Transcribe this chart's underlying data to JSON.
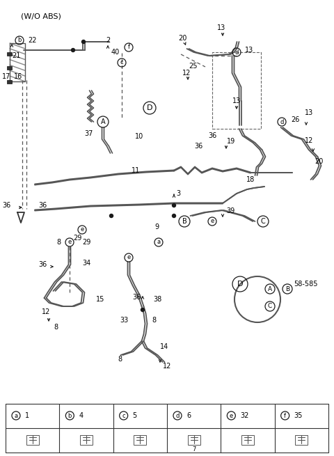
{
  "title": "(W/O ABS)",
  "bg_color": "#ffffff",
  "line_color": "#1a1a1a",
  "text_color": "#000000",
  "fig_width": 4.8,
  "fig_height": 6.55,
  "dpi": 100,
  "legend_letters": [
    "a",
    "b",
    "c",
    "d",
    "e",
    "f"
  ],
  "legend_nums": [
    "1",
    "4",
    "5",
    "6",
    "32",
    "35"
  ]
}
